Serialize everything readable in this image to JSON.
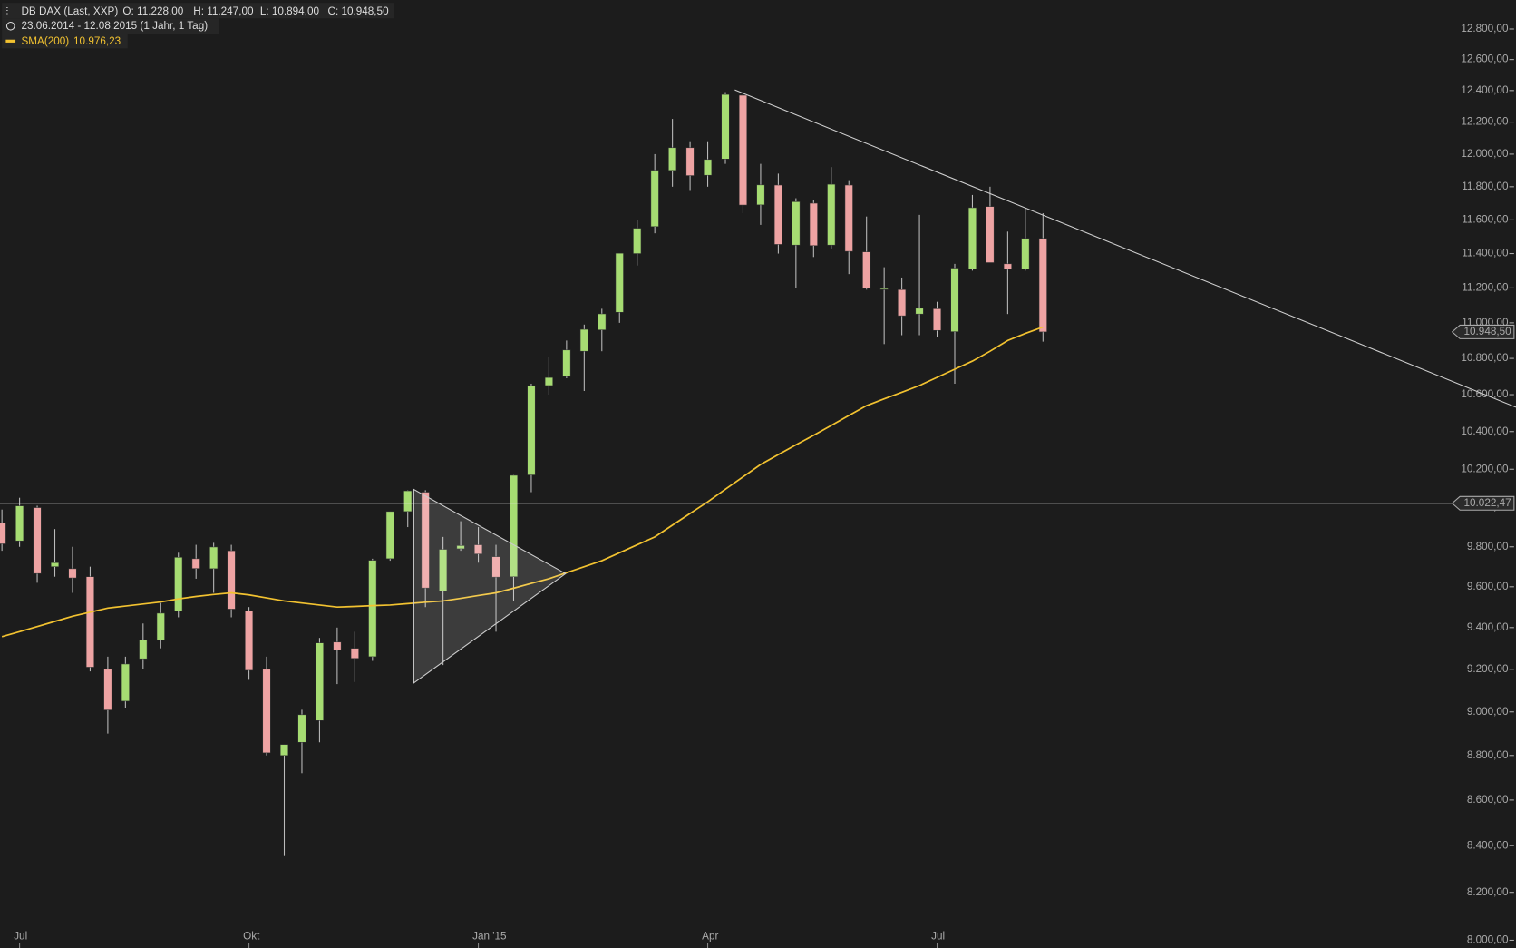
{
  "chart_data": {
    "type": "candlestick",
    "header": {
      "instrument": "DB DAX (Last, XXP)",
      "open": "O: 11.228,00",
      "high": "H: 11.247,00",
      "low": "L: 10.894,00",
      "close": "C: 10.948,50",
      "range": "23.06.2014 - 12.08.2015 (1 Jahr, 1 Tag)"
    },
    "categories": [
      null,
      "Jul",
      null,
      null,
      null,
      null,
      null,
      null,
      null,
      null,
      null,
      null,
      null,
      null,
      "Okt",
      null,
      null,
      null,
      null,
      null,
      null,
      null,
      null,
      null,
      null,
      null,
      null,
      "Jan '15",
      null,
      null,
      null,
      null,
      null,
      null,
      null,
      null,
      null,
      null,
      null,
      null,
      "Apr",
      null,
      null,
      null,
      null,
      null,
      null,
      null,
      null,
      null,
      null,
      null,
      null,
      "Jul",
      null,
      null,
      null,
      null,
      null,
      null
    ],
    "open": [
      9920,
      9830,
      10000,
      9700,
      9690,
      9650,
      9200,
      9050,
      9250,
      9340,
      9480,
      9740,
      9690,
      9780,
      9480,
      9200,
      8800,
      8860,
      8960,
      9330,
      9300,
      9260,
      9740,
      9980,
      10080,
      9580,
      9790,
      9810,
      9750,
      9650,
      10170,
      10650,
      10700,
      10840,
      10960,
      11060,
      11400,
      11560,
      11900,
      12040,
      11870,
      11970,
      12370,
      11690,
      11810,
      11450,
      11700,
      11450,
      11810,
      11410,
      11190,
      11190,
      11050,
      11080,
      10950,
      11310,
      11680,
      11340,
      11310,
      11490
    ],
    "high": [
      9990,
      10051,
      10010,
      9890,
      9800,
      9700,
      9260,
      9260,
      9420,
      9520,
      9770,
      9810,
      9820,
      9810,
      9500,
      9260,
      8850,
      9010,
      9350,
      9400,
      9380,
      9740,
      9980,
      10090,
      10090,
      9850,
      9930,
      9900,
      9810,
      10170,
      10660,
      10810,
      10900,
      10990,
      11080,
      11400,
      11600,
      12000,
      12220,
      12080,
      12080,
      12390,
      12390,
      11940,
      11880,
      11730,
      11720,
      11920,
      11840,
      11620,
      11320,
      11260,
      11630,
      11120,
      11340,
      11750,
      11800,
      11530,
      11670,
      11640
    ],
    "low": [
      9780,
      9800,
      9620,
      9650,
      9570,
      9190,
      8900,
      9020,
      9200,
      9300,
      9450,
      9640,
      9570,
      9450,
      9150,
      8800,
      8355,
      8720,
      8860,
      9130,
      9140,
      9240,
      9730,
      9900,
      9500,
      9220,
      9780,
      9720,
      9380,
      9530,
      10080,
      10600,
      10690,
      10620,
      10840,
      11000,
      11330,
      11520,
      11800,
      11780,
      11800,
      11940,
      11640,
      11570,
      11400,
      11200,
      11380,
      11430,
      11280,
      11190,
      10880,
      10930,
      10930,
      10920,
      10660,
      11300,
      11380,
      11050,
      11300,
      10894
    ],
    "close": [
      9815,
      10009,
      9666,
      9720,
      9644,
      9210,
      9009,
      9225,
      9339,
      9470,
      9747,
      9691,
      9799,
      9490,
      9195,
      8812,
      8850,
      8987,
      9326,
      9291,
      9252,
      9732,
      9980,
      10087,
      9594,
      9787,
      9806,
      9764,
      9648,
      10168,
      10649,
      10694,
      10847,
      10963,
      11051,
      11402,
      11550,
      11901,
      12040,
      11868,
      11967,
      12375,
      11689,
      11811,
      11454,
      11709,
      11447,
      11815,
      11413,
      11197,
      11196,
      11040,
      11083,
      10957,
      11315,
      11673,
      11347,
      11308,
      11490,
      10948.5
    ],
    "up_color": "#a6dc72",
    "down_color": "#eea3a3",
    "overlays": [
      {
        "name": "SMA(200)",
        "value_label": "10.976,23",
        "color": "#f2c230",
        "values": [
          9356,
          9380,
          9405,
          9430,
          9455,
          9475,
          9495,
          9505,
          9515,
          9525,
          9540,
          9552,
          9562,
          9570,
          9560,
          9545,
          9530,
          9520,
          9510,
          9500,
          9503,
          9507,
          9510,
          9517,
          9524,
          9530,
          9543,
          9557,
          9570,
          9593,
          9617,
          9640,
          9670,
          9700,
          9730,
          9770,
          9810,
          9850,
          9910,
          9970,
          10030,
          10095,
          10160,
          10225,
          10277,
          10329,
          10380,
          10433,
          10487,
          10540,
          10577,
          10613,
          10650,
          10695,
          10740,
          10785,
          10840,
          10900,
          10940,
          10976.23
        ]
      }
    ],
    "price_tags": [
      {
        "value": 10948.5,
        "label": "10.948,50"
      },
      {
        "value": 10022.47,
        "label": "10.022,47"
      }
    ],
    "log_scale": true,
    "ylim": [
      8000,
      12800
    ],
    "yticks": [
      {
        "value": 8000,
        "label": "8.000,00"
      },
      {
        "value": 8200,
        "label": "8.200,00"
      },
      {
        "value": 8400,
        "label": "8.400,00"
      },
      {
        "value": 8600,
        "label": "8.600,00"
      },
      {
        "value": 8800,
        "label": "8.800,00"
      },
      {
        "value": 9000,
        "label": "9.000,00"
      },
      {
        "value": 9200,
        "label": "9.200,00"
      },
      {
        "value": 9400,
        "label": "9.400,00"
      },
      {
        "value": 9600,
        "label": "9.600,00"
      },
      {
        "value": 9800,
        "label": "9.800,00"
      },
      {
        "value": 10000,
        "label": "10.000,00"
      },
      {
        "value": 10200,
        "label": "10.200,00"
      },
      {
        "value": 10400,
        "label": "10.400,00"
      },
      {
        "value": 10600,
        "label": "10.600,00"
      },
      {
        "value": 10800,
        "label": "10.800,00"
      },
      {
        "value": 11000,
        "label": "11.000,00"
      },
      {
        "value": 11200,
        "label": "11.200,00"
      },
      {
        "value": 11400,
        "label": "11.400,00"
      },
      {
        "value": 11600,
        "label": "11.600,00"
      },
      {
        "value": 11800,
        "label": "11.800,00"
      },
      {
        "value": 12000,
        "label": "12.000,00"
      },
      {
        "value": 12200,
        "label": "12.200,00"
      },
      {
        "value": 12400,
        "label": "12.400,00"
      },
      {
        "value": 12600,
        "label": "12.600,00"
      },
      {
        "value": 12800,
        "label": "12.800,00"
      }
    ]
  }
}
